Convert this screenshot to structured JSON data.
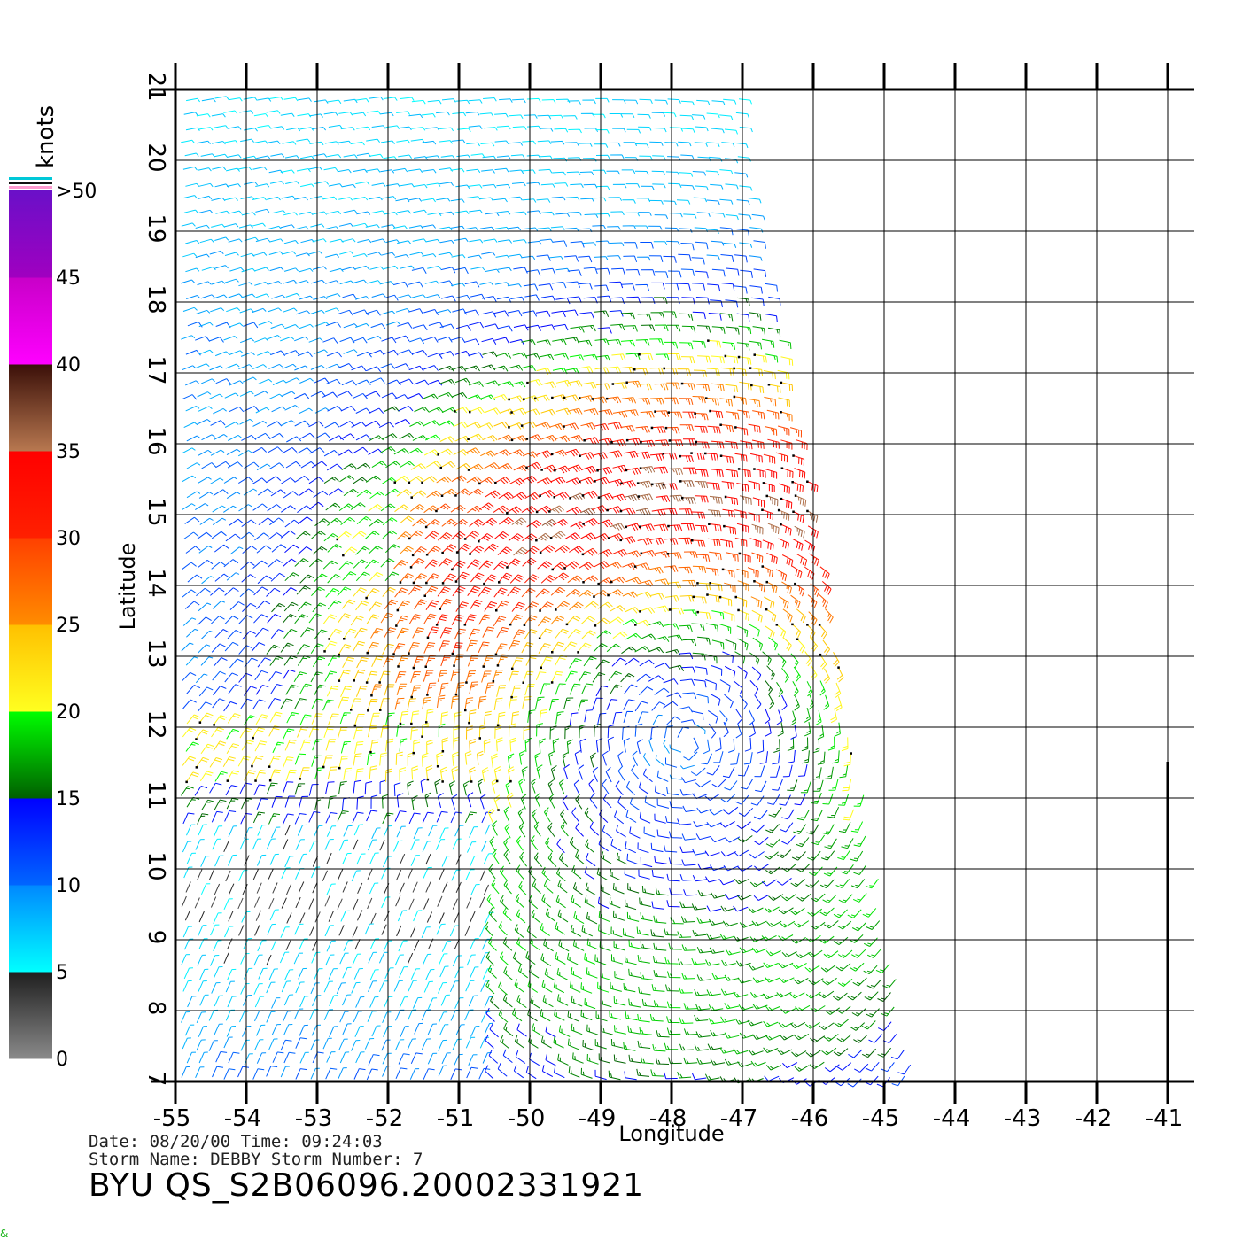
{
  "chart_data": {
    "type": "scatter",
    "subtype": "wind-barb-field",
    "xlabel": "Longitude",
    "ylabel": "Latitude",
    "xlim": [
      -55,
      -41
    ],
    "ylim": [
      7,
      21
    ],
    "xticks": [
      "-55",
      "-54",
      "-53",
      "-52",
      "-51",
      "-50",
      "-49",
      "-48",
      "-47",
      "-46",
      "-45",
      "-44",
      "-43",
      "-42",
      "-41"
    ],
    "yticks": [
      "7",
      "8",
      "9",
      "10",
      "11",
      "12",
      "13",
      "14",
      "15",
      "16",
      "17",
      "18",
      "19",
      "20",
      "21"
    ],
    "grid": true,
    "swath_edge": [
      [
        -47,
        21
      ],
      [
        -47,
        20.1
      ],
      [
        -46.1,
        15.5
      ],
      [
        -45.2,
        10.5
      ],
      [
        -44.6,
        7
      ]
    ],
    "storm_center": [
      -47.8,
      11.8
    ],
    "colorbar": {
      "unit_label": "knots",
      "tick_labels": [
        "0",
        "5",
        "10",
        "15",
        "20",
        "25",
        "30",
        "35",
        "40",
        "45",
        ">50"
      ],
      "bands": [
        {
          "from": 0,
          "to": 5,
          "colors": [
            "#8a8a8a",
            "#1e1e1e"
          ]
        },
        {
          "from": 5,
          "to": 10,
          "colors": [
            "#00ffff",
            "#0088ff"
          ]
        },
        {
          "from": 10,
          "to": 15,
          "colors": [
            "#0066ff",
            "#0000ff"
          ]
        },
        {
          "from": 15,
          "to": 20,
          "colors": [
            "#005f00",
            "#00ff00"
          ]
        },
        {
          "from": 20,
          "to": 25,
          "colors": [
            "#ffff20",
            "#ffc000"
          ]
        },
        {
          "from": 25,
          "to": 30,
          "colors": [
            "#ff8c00",
            "#ff4000"
          ]
        },
        {
          "from": 30,
          "to": 35,
          "colors": [
            "#ff2000",
            "#ff0000"
          ]
        },
        {
          "from": 35,
          "to": 40,
          "colors": [
            "#b87850",
            "#3a0f08"
          ]
        },
        {
          "from": 40,
          "to": 45,
          "colors": [
            "#ff00ff",
            "#c800c8"
          ]
        },
        {
          "from": 45,
          "to": 50,
          "colors": [
            "#a000c0",
            "#6a10c8"
          ]
        }
      ]
    }
  },
  "footer": {
    "date_line": "Date: 08/20/00   Time: 09:24:03",
    "storm_line": "Storm Name: DEBBY   Storm Number: 7",
    "file_id": "BYU QS_S2B06096.20002331921"
  },
  "corner_glyph": "&"
}
